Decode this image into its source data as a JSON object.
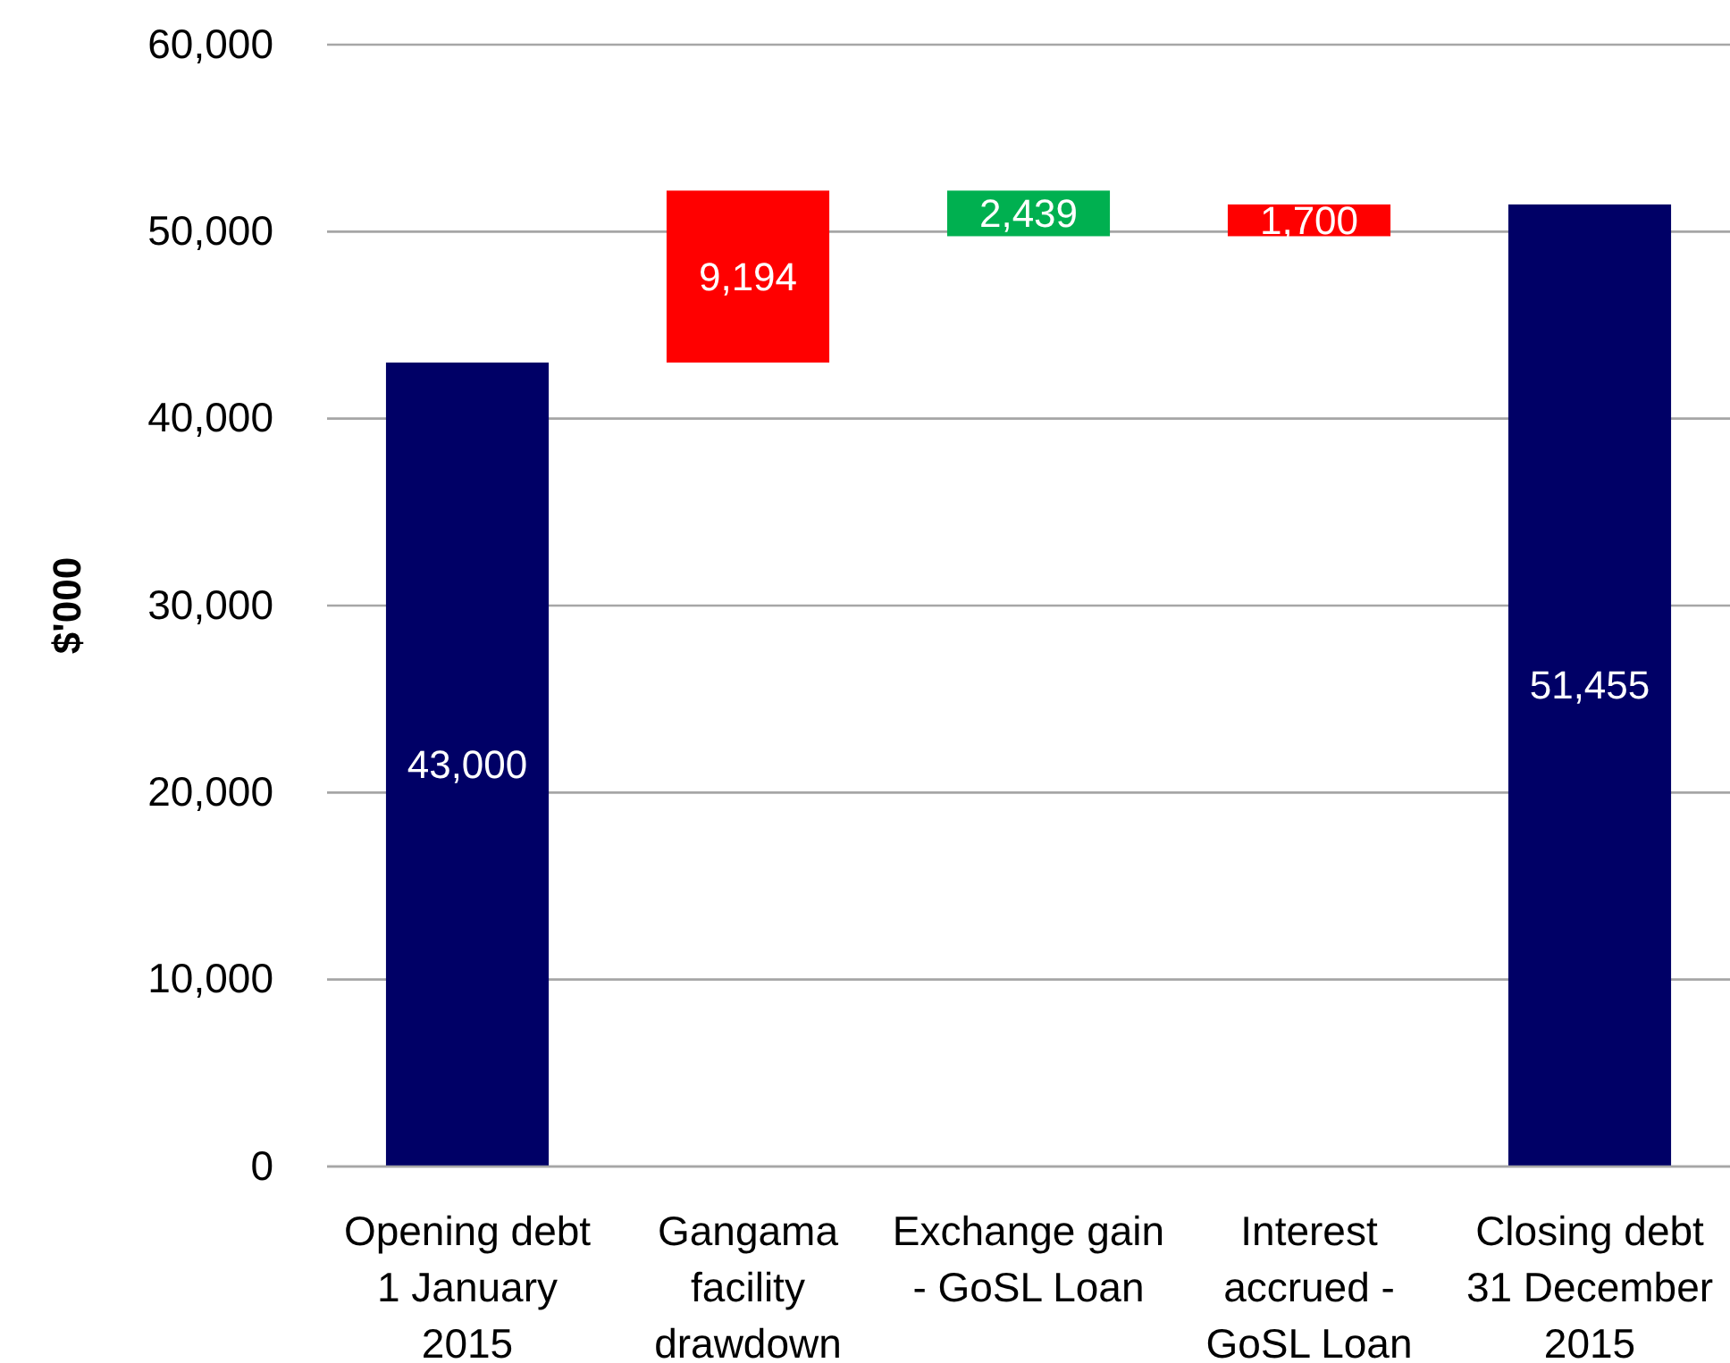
{
  "chart_data": {
    "type": "bar",
    "ylabel": "$'000",
    "categories": [
      "Opening debt\n1 January\n2015",
      "Gangama\nfacility\ndrawdown",
      "Exchange gain\n- GoSL Loan",
      "Interest\naccrued -\nGoSL Loan",
      "Closing debt\n31 December\n2015"
    ],
    "values": [
      43000,
      9194,
      2439,
      1700,
      51455
    ],
    "base": [
      0,
      43000,
      49755,
      49755,
      0
    ],
    "colors": [
      "#000066",
      "#ff0000",
      "#00b050",
      "#ff0000",
      "#000066"
    ],
    "value_labels": [
      "43,000",
      "9,194",
      "2,439",
      "1,700",
      "51,455"
    ],
    "ylim": [
      0,
      60000
    ],
    "yticks": [
      0,
      {
        "value": 10000,
        "label": "10,000"
      },
      {
        "value": 20000,
        "label": "20,000"
      },
      {
        "value": 30000,
        "label": "30,000"
      },
      {
        "value": 40000,
        "label": "40,000"
      },
      {
        "value": 50000,
        "label": "50,000"
      },
      {
        "value": 60000,
        "label": "60,000"
      }
    ],
    "grid": "y"
  }
}
